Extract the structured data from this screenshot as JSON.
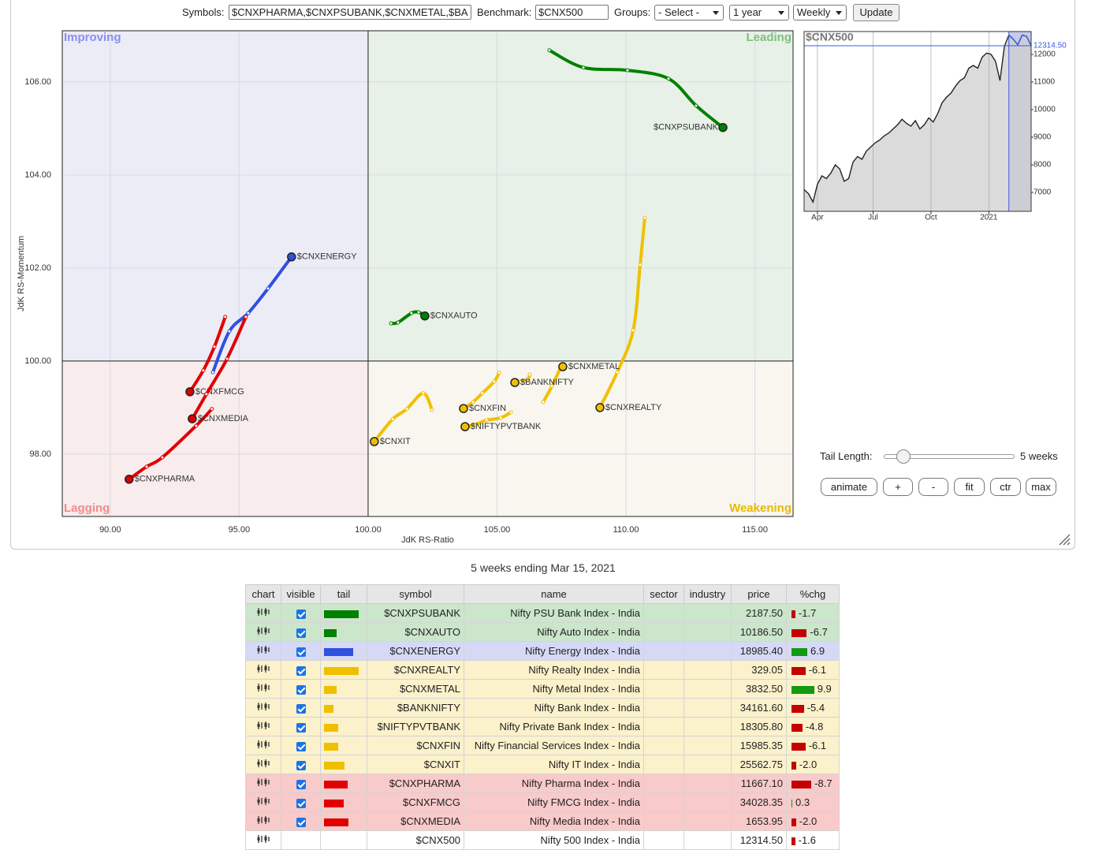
{
  "toolbar": {
    "symbols_label": "Symbols:",
    "symbols_value": "$CNXPHARMA,$CNXPSUBANK,$CNXMETAL,$BA",
    "benchmark_label": "Benchmark:",
    "benchmark_value": "$CNX500",
    "groups_label": "Groups:",
    "groups_value": "- Select -",
    "period": "1 year",
    "interval": "Weekly",
    "update": "Update"
  },
  "chart_data": [
    {
      "type": "rrg",
      "x_label": "JdK RS-Ratio",
      "y_label": "JdK RS-Momentum",
      "xlim": [
        88.14,
        116.48
      ],
      "ylim": [
        96.66,
        107.1
      ],
      "xticks": [
        {
          "value": 90,
          "label": "90.00"
        },
        {
          "value": 95,
          "label": "95.00"
        },
        {
          "value": 100,
          "label": "100.00"
        },
        {
          "value": 105,
          "label": "105.00"
        },
        {
          "value": 110,
          "label": "110.00"
        },
        {
          "value": 115,
          "label": "115.00"
        }
      ],
      "yticks": [
        {
          "value": 98,
          "label": "98.00"
        },
        {
          "value": 100,
          "label": "100.00"
        },
        {
          "value": 102,
          "label": "102.00"
        },
        {
          "value": 104,
          "label": "104.00"
        },
        {
          "value": 106,
          "label": "106.00"
        }
      ],
      "center": [
        100,
        100
      ],
      "grid": true,
      "quadrant_labels": {
        "improving": "Improving",
        "leading": "Leading",
        "lagging": "Lagging",
        "weakening": "Weakening"
      },
      "quadrant_colors": {
        "improving": "#ececf7",
        "leading": "#e7f1e7",
        "lagging": "#f8ecec",
        "weakening": "#f8f6ef"
      },
      "quadrant_label_colors": {
        "improving": "#8a8ef0",
        "leading": "#80c080",
        "lagging": "#f08c8c",
        "weakening": "#e8b800"
      },
      "series": [
        {
          "name": "$CNXPSUBANK",
          "color": "#008000",
          "x": [
            107.03,
            108.35,
            110.06,
            111.65,
            112.72,
            113.76
          ],
          "values": [
            106.68,
            106.31,
            106.25,
            106.07,
            105.49,
            105.02
          ]
        },
        {
          "name": "$CNXAUTO",
          "color": "#008000",
          "x": [
            100.89,
            101.16,
            101.68,
            101.96,
            102.2
          ],
          "values": [
            100.81,
            100.83,
            101.03,
            101.05,
            100.97
          ]
        },
        {
          "name": "$CNXENERGY",
          "color": "#3050e0",
          "x": [
            93.98,
            94.62,
            95.35,
            96.12,
            97.03
          ],
          "values": [
            99.76,
            100.64,
            101.03,
            101.56,
            102.24
          ]
        },
        {
          "name": "$CNXREALTY",
          "color": "#f0c000",
          "x": [
            110.73,
            110.55,
            110.28,
            109.66,
            108.99
          ],
          "values": [
            103.08,
            102.07,
            100.66,
            99.76,
            99.0
          ]
        },
        {
          "name": "$CNXMETAL",
          "color": "#f0c000",
          "x": [
            106.79,
            107.13,
            107.46,
            107.55
          ],
          "values": [
            99.12,
            99.46,
            99.85,
            99.88
          ]
        },
        {
          "name": "$BANKNIFTY",
          "color": "#f0c000",
          "x": [
            106.27,
            106.18,
            105.9,
            105.69
          ],
          "values": [
            99.71,
            99.61,
            99.56,
            99.54
          ]
        },
        {
          "name": "$NIFTYPVTBANK",
          "color": "#f0c000",
          "x": [
            105.54,
            105.14,
            104.59,
            104.19,
            103.76
          ],
          "values": [
            98.9,
            98.78,
            98.73,
            98.64,
            98.59
          ]
        },
        {
          "name": "$CNXFIN",
          "color": "#f0c000",
          "x": [
            105.08,
            104.89,
            104.43,
            104.07,
            103.7
          ],
          "values": [
            99.75,
            99.56,
            99.31,
            99.12,
            98.98
          ]
        },
        {
          "name": "$CNXIT",
          "color": "#f0c000",
          "x": [
            102.48,
            102.14,
            101.5,
            100.95,
            100.24
          ],
          "values": [
            98.95,
            99.31,
            98.97,
            98.75,
            98.27
          ]
        },
        {
          "name": "$CNXPHARMA",
          "color": "#e00000",
          "x": [
            93.94,
            93.33,
            92.02,
            91.41,
            90.73
          ],
          "values": [
            98.97,
            98.61,
            97.93,
            97.73,
            97.46
          ]
        },
        {
          "name": "$CNXFMCG",
          "color": "#e00000",
          "x": [
            94.46,
            94.04,
            93.61,
            93.09
          ],
          "values": [
            100.95,
            100.31,
            99.8,
            99.34
          ]
        },
        {
          "name": "$CNXMEDIA",
          "color": "#e00000",
          "x": [
            95.26,
            94.53,
            93.73,
            93.18
          ],
          "values": [
            100.95,
            100.05,
            99.29,
            98.76
          ]
        }
      ]
    },
    {
      "type": "line",
      "title": "$CNX500",
      "color": "#222222",
      "tail_color": "#3a5be0",
      "xlim": [
        0,
        51
      ],
      "ylim": [
        6314,
        12829
      ],
      "xticks": [
        {
          "value": 3,
          "label": "Apr"
        },
        {
          "value": 15.5,
          "label": "Jul"
        },
        {
          "value": 28.5,
          "label": "Oct"
        },
        {
          "value": 41.5,
          "label": "2021"
        }
      ],
      "yticks": [
        7000,
        8000,
        9000,
        10000,
        11000,
        12000
      ],
      "values": [
        7100,
        6950,
        6650,
        7300,
        7600,
        7500,
        7700,
        8000,
        7850,
        7400,
        7500,
        8100,
        8300,
        8200,
        8500,
        8650,
        8800,
        8900,
        9050,
        9150,
        9300,
        9450,
        9650,
        9500,
        9400,
        9600,
        9300,
        9450,
        9700,
        9550,
        9850,
        10250,
        10450,
        10600,
        10850,
        11050,
        11150,
        11500,
        11600,
        11500,
        11900,
        12050,
        12000,
        11750,
        11050,
        12300,
        12700,
        12550,
        12350,
        12700,
        12650,
        12314.5
      ],
      "value_labels": [
        null,
        null,
        null,
        null,
        null,
        null,
        null,
        null,
        null,
        null,
        null,
        null,
        null,
        null,
        null,
        null,
        null,
        null,
        null,
        null,
        null,
        null,
        null,
        null,
        null,
        null,
        null,
        null,
        null,
        null,
        null,
        null,
        null,
        null,
        null,
        null,
        null,
        null,
        null,
        null,
        null,
        null,
        null,
        null,
        null,
        null,
        null,
        null,
        null,
        null,
        null,
        "12314.50"
      ]
    }
  ],
  "controls": {
    "tail_label": "Tail Length:",
    "tail_value": "5 weeks",
    "buttons": [
      "animate",
      "+",
      "-",
      "fit",
      "ctr",
      "max"
    ]
  },
  "caption": "5 weeks ending Mar 15, 2021",
  "table": {
    "columns": [
      "chart",
      "visible",
      "tail",
      "symbol",
      "name",
      "sector",
      "industry",
      "price",
      "%chg"
    ],
    "row_colors": {
      "improving": "#d6d9f6",
      "leading": "#cbe6cb",
      "lagging": "#f8caca",
      "weakening": "#fbf1cb"
    },
    "rows": [
      {
        "symbol": "$CNXPSUBANK",
        "name": "Nifty PSU Bank Index - India",
        "price": "2187.50",
        "chg": "-1.7"
      },
      {
        "symbol": "$CNXAUTO",
        "name": "Nifty Auto Index - India",
        "price": "10186.50",
        "chg": "-6.7"
      },
      {
        "symbol": "$CNXENERGY",
        "name": "Nifty Energy Index - India",
        "price": "18985.40",
        "chg": "6.9"
      },
      {
        "symbol": "$CNXREALTY",
        "name": "Nifty Realty Index - India",
        "price": "329.05",
        "chg": "-6.1"
      },
      {
        "symbol": "$CNXMETAL",
        "name": "Nifty Metal Index - India",
        "price": "3832.50",
        "chg": "9.9"
      },
      {
        "symbol": "$BANKNIFTY",
        "name": "Nifty Bank Index - India",
        "price": "34161.60",
        "chg": "-5.4"
      },
      {
        "symbol": "$NIFTYPVTBANK",
        "name": "Nifty Private Bank Index - India",
        "price": "18305.80",
        "chg": "-4.8"
      },
      {
        "symbol": "$CNXFIN",
        "name": "Nifty Financial Services Index - India",
        "price": "15985.35",
        "chg": "-6.1"
      },
      {
        "symbol": "$CNXIT",
        "name": "Nifty IT Index - India",
        "price": "25562.75",
        "chg": "-2.0"
      },
      {
        "symbol": "$CNXPHARMA",
        "name": "Nifty Pharma Index - India",
        "price": "11667.10",
        "chg": "-8.7"
      },
      {
        "symbol": "$CNXFMCG",
        "name": "Nifty FMCG Index - India",
        "price": "34028.35",
        "chg": "0.3"
      },
      {
        "symbol": "$CNXMEDIA",
        "name": "Nifty Media Index - India",
        "price": "1653.95",
        "chg": "-2.0"
      },
      {
        "symbol": "$CNX500",
        "name": "Nifty 500 Index - India",
        "price": "12314.50",
        "chg": "-1.6"
      }
    ]
  }
}
